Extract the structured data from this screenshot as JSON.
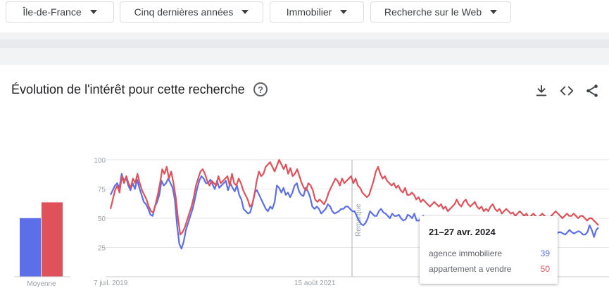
{
  "filters": [
    {
      "label": "Île-de-France"
    },
    {
      "label": "Cinq dernières années"
    },
    {
      "label": "Immobilier"
    },
    {
      "label": "Recherche sur le Web"
    }
  ],
  "section": {
    "title": "Évolution de l'intérêt pour cette recherche",
    "help_icon": "?",
    "tools": [
      "download-icon",
      "embed-icon",
      "share-icon"
    ]
  },
  "colors": {
    "series1": "#5c6fe8",
    "series2": "#e0525a",
    "grid": "#e6e6e6",
    "axis_text": "#9aa0a6"
  },
  "tooltip": {
    "date": "21–27 avr. 2024",
    "rows": [
      {
        "name": "agence immobiliere",
        "value": "39",
        "color": "#5c6fe8"
      },
      {
        "name": "appartement a vendre",
        "value": "50",
        "color": "#e0525a"
      }
    ]
  },
  "chart_data": [
    {
      "type": "bar",
      "categories": [
        "Moyenne"
      ],
      "series": [
        {
          "name": "agence immobiliere",
          "values": [
            52
          ]
        },
        {
          "name": "appartement a vendre",
          "values": [
            66
          ]
        }
      ]
    },
    {
      "type": "line",
      "ylim": [
        0,
        100
      ],
      "yticks": [
        "25",
        "50",
        "75",
        "100"
      ],
      "xticks": [
        "7 juil. 2019",
        "15 août 2021"
      ],
      "annotation": "Remarque",
      "grid": true,
      "series": [
        {
          "name": "agence immobiliere",
          "values": [
            70,
            74,
            78,
            80,
            76,
            88,
            82,
            85,
            78,
            74,
            80,
            75,
            83,
            76,
            70,
            64,
            62,
            58,
            53,
            52,
            60,
            64,
            70,
            82,
            78,
            80,
            84,
            80,
            76,
            66,
            44,
            28,
            24,
            30,
            40,
            46,
            52,
            58,
            66,
            75,
            82,
            86,
            84,
            80,
            80,
            83,
            79,
            75,
            82,
            76,
            78,
            80,
            82,
            74,
            80,
            76,
            73,
            78,
            70,
            66,
            58,
            56,
            54,
            55,
            62,
            72,
            74,
            70,
            66,
            62,
            58,
            56,
            60,
            58,
            64,
            78,
            76,
            72,
            76,
            70,
            72,
            68,
            72,
            78,
            80,
            73,
            70,
            69,
            76,
            73,
            68,
            60,
            58,
            60,
            58,
            54,
            56,
            58,
            62,
            60,
            56,
            54,
            55,
            56,
            58,
            58,
            60,
            60,
            58,
            56,
            56,
            52,
            48,
            45,
            44,
            46,
            50,
            56,
            54,
            52,
            52,
            56,
            58,
            55,
            54,
            52,
            50,
            54,
            52,
            52,
            53,
            50,
            48,
            49,
            53,
            52,
            50,
            54,
            48,
            48,
            50,
            52,
            48,
            47,
            46,
            48,
            48,
            46,
            44,
            46,
            44,
            44,
            43,
            43,
            45,
            44,
            42,
            42,
            44,
            43,
            40,
            42,
            42,
            43,
            40,
            40,
            38,
            38,
            40,
            41,
            40,
            38,
            36,
            38,
            42,
            44,
            40,
            38,
            40,
            39,
            37,
            38,
            40,
            41,
            38,
            36,
            37,
            38,
            40,
            40,
            39,
            38,
            40,
            38,
            36,
            36,
            38,
            40,
            39,
            37,
            36,
            36,
            38,
            38,
            37,
            36,
            38,
            40,
            38,
            37,
            38,
            39,
            38,
            36,
            36,
            38,
            44,
            40,
            34,
            40,
            42
          ]
        },
        {
          "name": "appartement a vendre",
          "values": [
            58,
            66,
            74,
            78,
            72,
            86,
            80,
            86,
            80,
            76,
            84,
            80,
            88,
            80,
            74,
            70,
            66,
            60,
            56,
            55,
            62,
            70,
            80,
            92,
            88,
            94,
            84,
            90,
            80,
            68,
            50,
            36,
            38,
            42,
            48,
            54,
            60,
            68,
            78,
            84,
            90,
            92,
            88,
            82,
            78,
            82,
            80,
            78,
            86,
            80,
            82,
            84,
            86,
            78,
            88,
            80,
            78,
            84,
            80,
            74,
            70,
            66,
            60,
            62,
            70,
            82,
            90,
            86,
            88,
            94,
            96,
            98,
            94,
            90,
            95,
            100,
            96,
            92,
            96,
            88,
            93,
            86,
            88,
            92,
            86,
            80,
            76,
            74,
            80,
            78,
            74,
            66,
            64,
            66,
            64,
            62,
            66,
            72,
            76,
            80,
            84,
            82,
            78,
            84,
            80,
            82,
            84,
            86,
            80,
            84,
            78,
            76,
            72,
            70,
            68,
            70,
            76,
            82,
            90,
            94,
            88,
            84,
            86,
            82,
            80,
            78,
            80,
            76,
            78,
            74,
            72,
            76,
            70,
            70,
            72,
            70,
            66,
            68,
            64,
            66,
            64,
            62,
            60,
            62,
            64,
            62,
            60,
            62,
            58,
            60,
            56,
            58,
            60,
            62,
            66,
            62,
            60,
            64,
            66,
            62,
            60,
            62,
            64,
            60,
            58,
            60,
            56,
            58,
            56,
            60,
            62,
            58,
            56,
            58,
            54,
            56,
            58,
            56,
            54,
            55,
            52,
            54,
            56,
            54,
            52,
            54,
            50,
            52,
            54,
            52,
            50,
            52,
            54,
            52,
            50,
            48,
            52,
            54,
            56,
            54,
            52,
            50,
            52,
            54,
            52,
            52,
            54,
            52,
            50,
            52,
            52,
            50,
            48,
            50,
            50,
            48,
            46,
            44
          ]
        }
      ]
    }
  ]
}
